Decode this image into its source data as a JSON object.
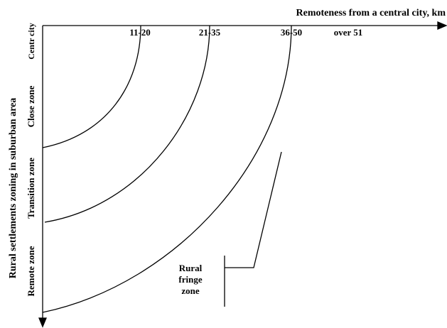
{
  "x_axis": {
    "label": "Remoteness from a central city, km",
    "ticks": [
      "11-20",
      "21-35",
      "36-50",
      "over 51"
    ]
  },
  "y_axis": {
    "label": "Rural settlements zoning in suburban area",
    "zones": [
      "Centr city",
      "Close zone",
      "Transition zone",
      "Remote zone"
    ]
  },
  "annotation": {
    "lines": [
      "Rural",
      "fringe",
      "zone"
    ]
  }
}
